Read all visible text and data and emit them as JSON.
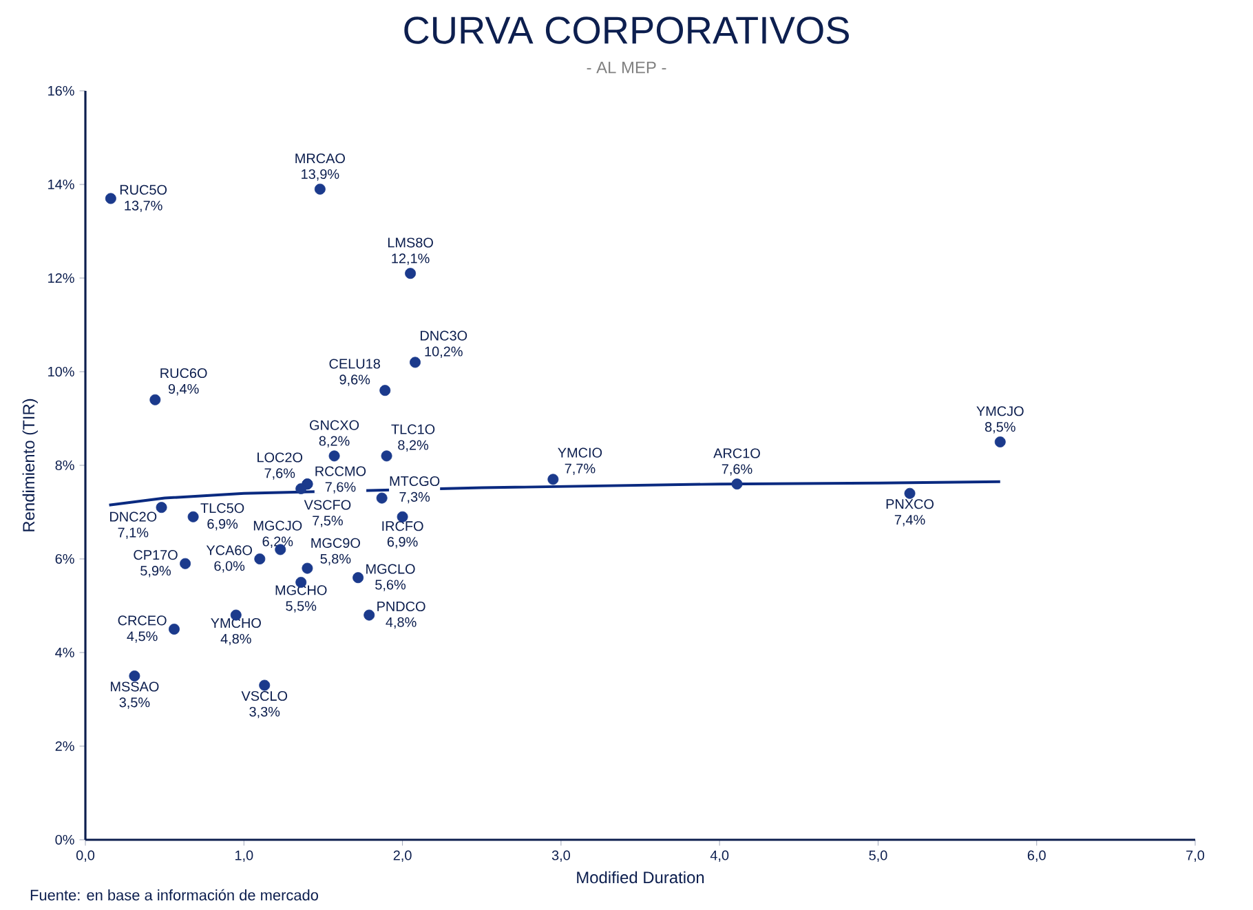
{
  "chart_data": {
    "type": "scatter",
    "title": "CURVA CORPORATIVOS",
    "subtitle": "- AL MEP -",
    "xlabel": "Modified Duration",
    "ylabel": "Rendimiento (TIR)",
    "annotations": [
      "Fuente: en base a información de mercado"
    ],
    "xlim": [
      0,
      7
    ],
    "ylim": [
      0,
      16
    ],
    "xticks": [
      {
        "value": 0,
        "label": "0,0"
      },
      {
        "value": 1,
        "label": "1,0"
      },
      {
        "value": 2,
        "label": "2,0"
      },
      {
        "value": 3,
        "label": "3,0"
      },
      {
        "value": 4,
        "label": "4,0"
      },
      {
        "value": 5,
        "label": "5,0"
      },
      {
        "value": 6,
        "label": "6,0"
      },
      {
        "value": 7,
        "label": "7,0"
      }
    ],
    "yticks": [
      {
        "value": 0,
        "label": "0%"
      },
      {
        "value": 2,
        "label": "2%"
      },
      {
        "value": 4,
        "label": "4%"
      },
      {
        "value": 6,
        "label": "6%"
      },
      {
        "value": 8,
        "label": "8%"
      },
      {
        "value": 10,
        "label": "10%"
      },
      {
        "value": 12,
        "label": "12%"
      },
      {
        "value": 14,
        "label": "14%"
      },
      {
        "value": 16,
        "label": "16%"
      }
    ],
    "marker": "circle",
    "grid": false,
    "series": [
      {
        "name": "RUC5O",
        "color": "#1b3a8c",
        "x": [
          0.16
        ],
        "values": [
          13.7
        ],
        "value_labels": [
          "13,7%"
        ]
      },
      {
        "name": "MRCAO",
        "color": "#1b3a8c",
        "x": [
          1.48
        ],
        "values": [
          13.9
        ],
        "value_labels": [
          "13,9%"
        ]
      },
      {
        "name": "LMS8O",
        "color": "#1b3a8c",
        "x": [
          2.05
        ],
        "values": [
          12.1
        ],
        "value_labels": [
          "12,1%"
        ]
      },
      {
        "name": "DNC3O",
        "color": "#1b3a8c",
        "x": [
          2.08
        ],
        "values": [
          10.2
        ],
        "value_labels": [
          "10,2%"
        ]
      },
      {
        "name": "CELU18",
        "color": "#1b3a8c",
        "x": [
          1.89
        ],
        "values": [
          9.6
        ],
        "value_labels": [
          "9,6%"
        ]
      },
      {
        "name": "RUC6O",
        "color": "#1b3a8c",
        "x": [
          0.44
        ],
        "values": [
          9.4
        ],
        "value_labels": [
          "9,4%"
        ]
      },
      {
        "name": "GNCXO",
        "color": "#1b3a8c",
        "x": [
          1.57
        ],
        "values": [
          8.2
        ],
        "value_labels": [
          "8,2%"
        ]
      },
      {
        "name": "TLC1O",
        "color": "#1b3a8c",
        "x": [
          1.9
        ],
        "values": [
          8.2
        ],
        "value_labels": [
          "8,2%"
        ]
      },
      {
        "name": "RCCMO",
        "color": "#1b3a8c",
        "x": [
          1.4
        ],
        "values": [
          7.6
        ],
        "value_labels": [
          "7,6%"
        ]
      },
      {
        "name": "LOC2O",
        "color": "#1b3a8c",
        "x": [
          1.4
        ],
        "values": [
          7.6
        ],
        "value_labels": [
          "7,6%"
        ]
      },
      {
        "name": "VSCFO",
        "color": "#1b3a8c",
        "x": [
          1.36
        ],
        "values": [
          7.5
        ],
        "value_labels": [
          "7,5%"
        ]
      },
      {
        "name": "YMCIO",
        "color": "#1b3a8c",
        "x": [
          2.95
        ],
        "values": [
          7.7
        ],
        "value_labels": [
          "7,7%"
        ]
      },
      {
        "name": "ARC1O",
        "color": "#1b3a8c",
        "x": [
          4.11
        ],
        "values": [
          7.6
        ],
        "value_labels": [
          "7,6%"
        ]
      },
      {
        "name": "PNXCO",
        "color": "#1b3a8c",
        "x": [
          5.2
        ],
        "values": [
          7.4
        ],
        "value_labels": [
          "7,4%"
        ]
      },
      {
        "name": "YMCJO",
        "color": "#1b3a8c",
        "x": [
          5.77
        ],
        "values": [
          8.5
        ],
        "value_labels": [
          "8,5%"
        ]
      },
      {
        "name": "DNC2O",
        "color": "#1b3a8c",
        "x": [
          0.48
        ],
        "values": [
          7.1
        ],
        "value_labels": [
          "7,1%"
        ]
      },
      {
        "name": "TLC5O",
        "color": "#1b3a8c",
        "x": [
          0.68
        ],
        "values": [
          6.9
        ],
        "value_labels": [
          "6,9%"
        ]
      },
      {
        "name": "YCA6O",
        "color": "#1b3a8c",
        "x": [
          1.1
        ],
        "values": [
          6.0
        ],
        "value_labels": [
          "6,0%"
        ]
      },
      {
        "name": "MTCGO",
        "color": "#1b3a8c",
        "x": [
          1.87
        ],
        "values": [
          7.3
        ],
        "value_labels": [
          "7,3%"
        ]
      },
      {
        "name": "IRCFO",
        "color": "#1b3a8c",
        "x": [
          2.0
        ],
        "values": [
          6.9
        ],
        "value_labels": [
          "6,9%"
        ]
      },
      {
        "name": "MGCJO",
        "color": "#1b3a8c",
        "x": [
          1.23
        ],
        "values": [
          6.2
        ],
        "value_labels": [
          "6,2%"
        ]
      },
      {
        "name": "MGCLO",
        "color": "#1b3a8c",
        "x": [
          1.72
        ],
        "values": [
          5.6
        ],
        "value_labels": [
          "5,6%"
        ]
      },
      {
        "name": "CP17O",
        "color": "#1b3a8c",
        "x": [
          0.63
        ],
        "values": [
          5.9
        ],
        "value_labels": [
          "5,9%"
        ]
      },
      {
        "name": "PNDCO",
        "color": "#1b3a8c",
        "x": [
          1.79
        ],
        "values": [
          4.8
        ],
        "value_labels": [
          "4,8%"
        ]
      },
      {
        "name": "CRCEO",
        "color": "#1b3a8c",
        "x": [
          0.56
        ],
        "values": [
          4.5
        ],
        "value_labels": [
          "4,5%"
        ]
      },
      {
        "name": "MGCHO",
        "color": "#1b3a8c",
        "x": [
          1.36
        ],
        "values": [
          5.5
        ],
        "value_labels": [
          "5,5%"
        ]
      },
      {
        "name": "YMCHO",
        "color": "#1b3a8c",
        "x": [
          0.95
        ],
        "values": [
          4.8
        ],
        "value_labels": [
          "4,8%"
        ]
      },
      {
        "name": "MGC9O",
        "color": "#1b3a8c",
        "x": [
          1.4
        ],
        "values": [
          5.8
        ],
        "value_labels": [
          "5,8%"
        ]
      },
      {
        "name": "MSSAO",
        "color": "#1b3a8c",
        "x": [
          0.31
        ],
        "values": [
          3.5
        ],
        "value_labels": [
          "3,5%"
        ]
      },
      {
        "name": "VSCLO",
        "color": "#1b3a8c",
        "x": [
          1.13
        ],
        "values": [
          3.3
        ],
        "value_labels": [
          "3,3%"
        ]
      },
      {
        "type": "line",
        "color": "#0a2a80",
        "marker": "none",
        "x": [
          0.15,
          0.5,
          1.0,
          2.5,
          4.0,
          5.0,
          5.77
        ],
        "values": [
          7.15,
          7.3,
          7.4,
          7.52,
          7.6,
          7.62,
          7.65
        ]
      }
    ]
  }
}
